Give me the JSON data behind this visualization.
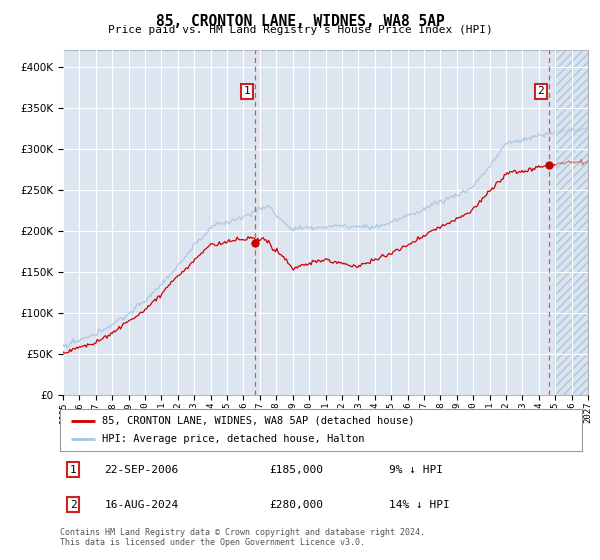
{
  "title": "85, CRONTON LANE, WIDNES, WA8 5AP",
  "subtitle": "Price paid vs. HM Land Registry's House Price Index (HPI)",
  "property_label": "85, CRONTON LANE, WIDNES, WA8 5AP (detached house)",
  "hpi_label": "HPI: Average price, detached house, Halton",
  "sale1_date": "22-SEP-2006",
  "sale1_price": "£185,000",
  "sale1_hpi": "9% ↓ HPI",
  "sale1_year": 2006.73,
  "sale1_value": 185000,
  "sale2_date": "16-AUG-2024",
  "sale2_price": "£280,000",
  "sale2_hpi": "14% ↓ HPI",
  "sale2_year": 2024.62,
  "sale2_value": 280000,
  "footer": "Contains HM Land Registry data © Crown copyright and database right 2024.\nThis data is licensed under the Open Government Licence v3.0.",
  "hpi_color": "#a8c5e0",
  "property_color": "#cc0000",
  "bg_color": "#dde6f0",
  "future_bg": "#ccd9e8",
  "grid_color": "#ffffff",
  "ylim": [
    0,
    420000
  ],
  "xmin": 1995,
  "xmax": 2027,
  "yticks": [
    0,
    50000,
    100000,
    150000,
    200000,
    250000,
    300000,
    350000,
    400000
  ]
}
